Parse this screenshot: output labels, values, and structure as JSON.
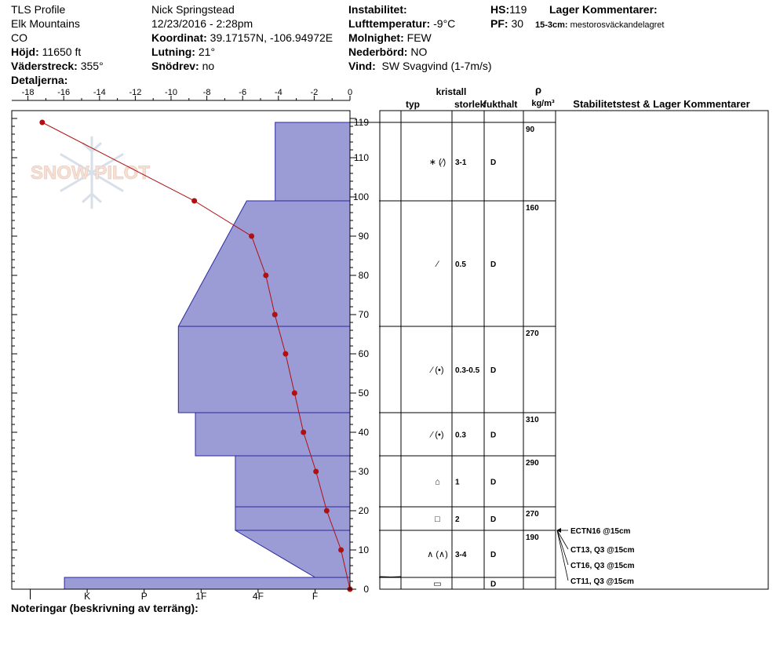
{
  "header": {
    "col1": [
      "TLS Profile",
      "Elk Mountains",
      "CO"
    ],
    "elevation_label": "Höjd:",
    "elevation": "11650 ft",
    "aspect_label": "Väderstreck:",
    "aspect": "355°",
    "details_label": "Detaljerna:",
    "observer": "Nick Springstead",
    "datetime": "12/23/2016 - 2:28pm",
    "coord_label": "Koordinat:",
    "coord": "39.17157N, -106.94972E",
    "slope_label": "Lutning:",
    "slope": "21°",
    "drift_label": "Snödrev:",
    "drift": "no",
    "stability_label": "Instabilitet:",
    "airtemp_label": "Lufttemperatur:",
    "airtemp": "-9°C",
    "cloud_label": "Molnighet:",
    "cloud": "FEW",
    "precip_label": "Nederbörd:",
    "precip": "NO",
    "wind_label": "Vind:",
    "wind": "SW Svagvind (1-7m/s)",
    "hs_label": "HS:",
    "hs": "119",
    "pf_label": "PF:",
    "pf": "30",
    "layer_comments_label": "Lager Kommentarer:",
    "layer_comment_depth": "15-3cm:",
    "layer_comment_text": "mestorosväckandelagret"
  },
  "watermark": "SNOW PILOT",
  "footer": {
    "notes_label": "Noteringar (beskrivning av terräng):"
  },
  "table_headers": {
    "crystal": "kristall",
    "type": "typ",
    "size": "storlek",
    "moisture": "fukthalt",
    "rho": "ρ",
    "density_unit": "kg/m³",
    "comments": "Stabilitetstest & Lager Kommentarer"
  },
  "chart_data": {
    "type": "snow-profile",
    "temperature_axis": {
      "range": [
        0,
        -19
      ],
      "ticks": [
        "-18",
        "-16",
        "-14",
        "-12",
        "-10",
        "-8",
        "-6",
        "-4",
        "-2",
        "0"
      ]
    },
    "depth_axis": {
      "range": [
        0,
        120
      ],
      "ticks": [
        "0",
        "10",
        "20",
        "30",
        "40",
        "50",
        "60",
        "70",
        "80",
        "90",
        "100",
        "110",
        "119"
      ]
    },
    "hardness_axis": {
      "ticks": [
        "I",
        "K",
        "P",
        "1F",
        "4F",
        "F"
      ]
    },
    "temperature_profile": [
      {
        "depth": 119,
        "temp": -17.2
      },
      {
        "depth": 99,
        "temp": -8.7
      },
      {
        "depth": 90,
        "temp": -5.5
      },
      {
        "depth": 80,
        "temp": -4.7
      },
      {
        "depth": 70,
        "temp": -4.2
      },
      {
        "depth": 60,
        "temp": -3.6
      },
      {
        "depth": 50,
        "temp": -3.1
      },
      {
        "depth": 40,
        "temp": -2.6
      },
      {
        "depth": 30,
        "temp": -1.9
      },
      {
        "depth": 20,
        "temp": -1.3
      },
      {
        "depth": 10,
        "temp": -0.5
      },
      {
        "depth": 0,
        "temp": 0
      }
    ],
    "hardness_profile": [
      {
        "depth": 119,
        "hardness": 4.3
      },
      {
        "depth": 99,
        "hardness": 4.3
      },
      {
        "depth": 99,
        "hardness": 3.8
      },
      {
        "depth": 67,
        "hardness": 2.6
      },
      {
        "depth": 67,
        "hardness": 2.6
      },
      {
        "depth": 45,
        "hardness": 2.6
      },
      {
        "depth": 45,
        "hardness": 2.9
      },
      {
        "depth": 34,
        "hardness": 2.9
      },
      {
        "depth": 34,
        "hardness": 3.6
      },
      {
        "depth": 15,
        "hardness": 3.6
      },
      {
        "depth": 3,
        "hardness": 5.0
      },
      {
        "depth": 3,
        "hardness": 0.6
      },
      {
        "depth": 0,
        "hardness": 0.6
      }
    ],
    "layer_boundaries": [
      119,
      99,
      67,
      45,
      34,
      21,
      15,
      3,
      0
    ],
    "layers": [
      {
        "top": 119,
        "bottom": 99,
        "type": "∗ (⁄)",
        "size": "3-1",
        "moisture": "D",
        "density": "90"
      },
      {
        "top": 99,
        "bottom": 67,
        "type": "⁄",
        "size": "0.5",
        "moisture": "D",
        "density": "160"
      },
      {
        "top": 67,
        "bottom": 45,
        "type": "⁄ (•)",
        "size": "0.3-0.5",
        "moisture": "D",
        "density": "270"
      },
      {
        "top": 45,
        "bottom": 34,
        "type": "⁄ (•)",
        "size": "0.3",
        "moisture": "D",
        "density": "310"
      },
      {
        "top": 34,
        "bottom": 21,
        "type": "⌂",
        "size": "1",
        "moisture": "D",
        "density": "290"
      },
      {
        "top": 21,
        "bottom": 15,
        "type": "□",
        "size": "2",
        "moisture": "D",
        "density": "270"
      },
      {
        "top": 15,
        "bottom": 3,
        "type": "∧ (∧)",
        "size": "3-4",
        "moisture": "D",
        "density": "190"
      },
      {
        "top": 3,
        "bottom": 0,
        "type": "▭",
        "size": "",
        "moisture": "D",
        "density": ""
      }
    ],
    "stability_tests": [
      "ECTN16 @15cm",
      "CT13, Q3 @15cm",
      "CT16, Q3 @15cm",
      "CT11, Q3 @15cm"
    ],
    "colors": {
      "hardness_fill": "#9b9bd6",
      "hardness_stroke": "#2a2aa0",
      "temperature": "#b01010"
    }
  }
}
